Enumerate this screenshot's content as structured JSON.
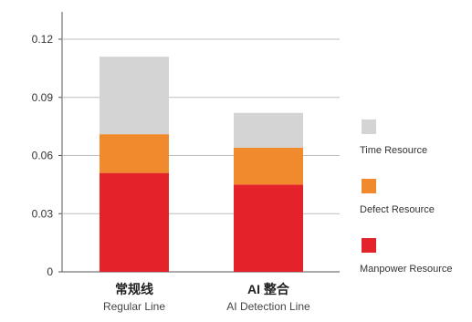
{
  "chart_data": {
    "type": "bar",
    "stacked": true,
    "categories": [
      {
        "label": "常规线",
        "sublabel": "Regular Line"
      },
      {
        "label": "AI 整合",
        "sublabel": "AI Detection Line"
      }
    ],
    "series": [
      {
        "name": "Manpower Resource",
        "color": "#e32329",
        "values": [
          0.051,
          0.045
        ]
      },
      {
        "name": "Defect Resource",
        "color": "#f08a2c",
        "values": [
          0.02,
          0.019
        ]
      },
      {
        "name": "Time Resource",
        "color": "#d4d4d4",
        "values": [
          0.04,
          0.018
        ]
      }
    ],
    "legend_order": [
      2,
      1,
      0
    ],
    "yticks": [
      "0",
      "0.03",
      "0.06",
      "0.09",
      "0.12"
    ],
    "ylim": [
      0,
      0.12
    ],
    "grid": true,
    "legend_position": "right",
    "title": "",
    "xlabel": "",
    "ylabel": ""
  }
}
